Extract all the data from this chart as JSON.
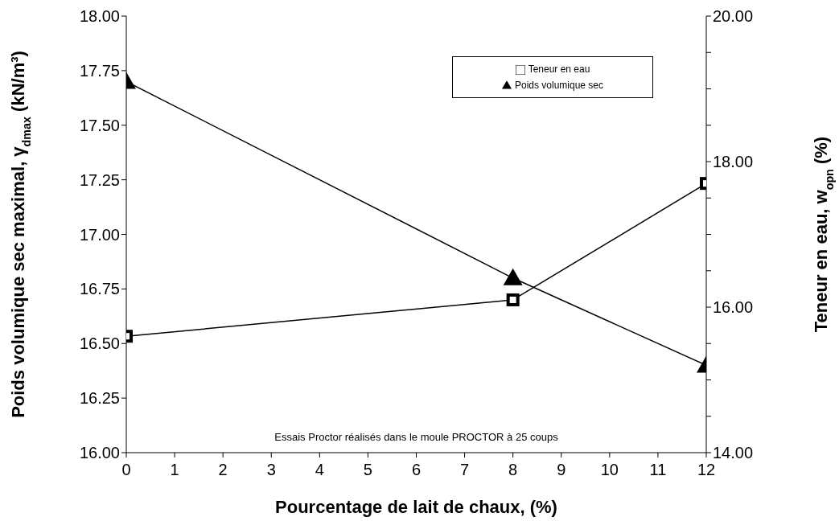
{
  "chart_data": {
    "type": "line",
    "xlabel": "Pourcentage de lait de chaux, (%)",
    "ylabel": "Poids volumique sec maximal, γ$_{dmax}$ (kN/m³)",
    "y2label": "Teneur en eau, w$_{opn}$ (%)",
    "x": [
      0,
      8,
      12
    ],
    "series": [
      {
        "name": "Teneur en eau",
        "color": "#000000",
        "axis": "y2",
        "marker": "square",
        "values": [
          15.6,
          16.1,
          17.7
        ]
      },
      {
        "name": "Poids volumique sec",
        "color": "#000000",
        "marker": "triangle",
        "values": [
          17.7,
          16.8,
          16.4
        ]
      }
    ],
    "xlim": [
      0,
      12
    ],
    "xticks": [
      0,
      1,
      2,
      3,
      4,
      5,
      6,
      7,
      8,
      9,
      10,
      11,
      12
    ],
    "ylim": [
      16,
      18
    ],
    "yticks": [
      {
        "value": 16,
        "label": "16.00"
      },
      {
        "value": 16.25,
        "label": "16.25"
      },
      {
        "value": 16.5,
        "label": "16.50"
      },
      {
        "value": 16.75,
        "label": "16.75"
      },
      {
        "value": 17,
        "label": "17.00"
      },
      {
        "value": 17.25,
        "label": "17.25"
      },
      {
        "value": 17.5,
        "label": "17.50"
      },
      {
        "value": 17.75,
        "label": "17.75"
      },
      {
        "value": 18,
        "label": "18.00"
      }
    ],
    "y2lim": [
      14,
      20
    ],
    "y2ticks": [
      {
        "value": 14,
        "label": "14.00"
      },
      {
        "value": 14.5,
        "label": null
      },
      {
        "value": 15,
        "label": null
      },
      {
        "value": 15.5,
        "label": null
      },
      {
        "value": 16,
        "label": "16.00"
      },
      {
        "value": 16.5,
        "label": null
      },
      {
        "value": 17,
        "label": null
      },
      {
        "value": 17.5,
        "label": null
      },
      {
        "value": 18,
        "label": "18.00"
      },
      {
        "value": 18.5,
        "label": null
      },
      {
        "value": 19,
        "label": null
      },
      {
        "value": 19.5,
        "label": null
      },
      {
        "value": 20,
        "label": "20.00"
      }
    ],
    "grid": false,
    "legend": "top right",
    "line_style": "solid",
    "annotations": [
      "Essais Proctor réalisés dans le moule PROCTOR à 25 coups"
    ]
  }
}
